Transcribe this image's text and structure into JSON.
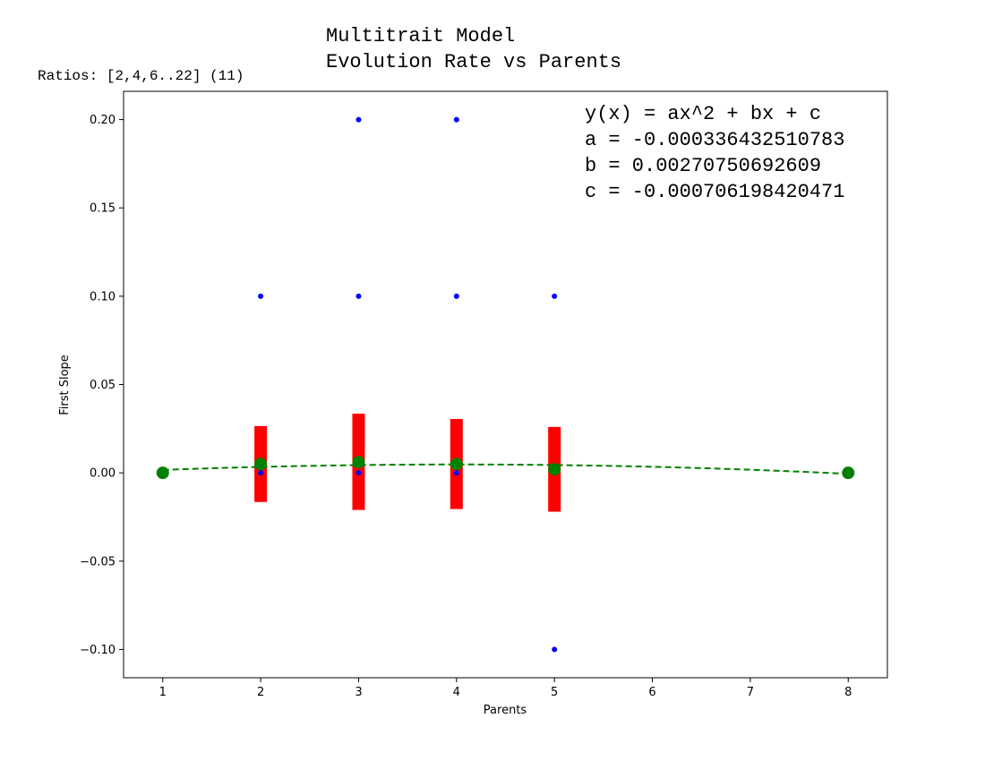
{
  "chart_data": {
    "type": "scatter",
    "title": "Multitrait Model\nEvolution Rate vs Parents",
    "subtitle": "Ratios: [2,4,6..22] (11)",
    "xlabel": "Parents",
    "ylabel": "First Slope",
    "xlim": [
      0.6,
      8.4
    ],
    "ylim": [
      -0.116,
      0.216
    ],
    "xticks": [
      1,
      2,
      3,
      4,
      5,
      6,
      7,
      8
    ],
    "yticks": [
      -0.1,
      -0.05,
      0.0,
      0.05,
      0.1,
      0.15,
      0.2
    ],
    "ytick_labels": [
      "−0.10",
      "−0.05",
      "0.00",
      "0.05",
      "0.10",
      "0.15",
      "0.20"
    ],
    "grid": false,
    "annotation": [
      "y(x) = ax^2 + bx + c",
      "a = -0.000336432510783",
      "b = 0.00270750692609",
      "c = -0.000706198420471"
    ],
    "raw_points": {
      "color": "#0000ff",
      "x": [
        2,
        2,
        3,
        3,
        3,
        4,
        4,
        4,
        5,
        5
      ],
      "y": [
        0.1,
        0.0,
        0.2,
        0.1,
        0.0,
        0.2,
        0.1,
        0.0,
        0.1,
        -0.1
      ]
    },
    "error_bars": {
      "color": "#ff0000",
      "x": [
        2,
        3,
        4,
        5
      ],
      "low": [
        -0.0165,
        -0.021,
        -0.0205,
        -0.022
      ],
      "high": [
        0.0265,
        0.0335,
        0.0305,
        0.026
      ]
    },
    "means": {
      "color": "#008000",
      "x": [
        1,
        2,
        3,
        4,
        5,
        8
      ],
      "y": [
        0.0,
        0.005,
        0.006,
        0.005,
        0.002,
        0.0
      ]
    },
    "fit": {
      "color": "#008000",
      "style": "dashed",
      "a": -0.000336432510783,
      "b": 0.00270750692609,
      "c": -0.000706198420471,
      "x_range": [
        1,
        8
      ]
    }
  }
}
